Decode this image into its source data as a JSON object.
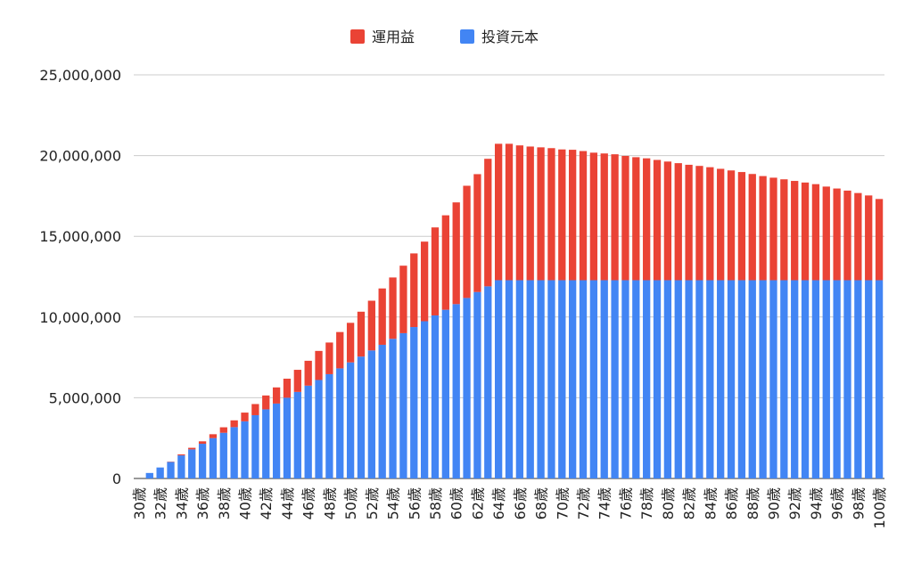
{
  "chart_data": {
    "type": "bar",
    "stacked": true,
    "legend_position": "top",
    "grid": true,
    "ylim": [
      0,
      25000000
    ],
    "y_ticks": [
      {
        "value": 0,
        "label": "0"
      },
      {
        "value": 5000000,
        "label": "5,000,000"
      },
      {
        "value": 10000000,
        "label": "10,000,000"
      },
      {
        "value": 15000000,
        "label": "15,000,000"
      },
      {
        "value": 20000000,
        "label": "20,000,000"
      },
      {
        "value": 25000000,
        "label": "25,000,000"
      }
    ],
    "categories": [
      "30歳",
      "31歳",
      "32歳",
      "33歳",
      "34歳",
      "35歳",
      "36歳",
      "37歳",
      "38歳",
      "39歳",
      "40歳",
      "41歳",
      "42歳",
      "43歳",
      "44歳",
      "45歳",
      "46歳",
      "47歳",
      "48歳",
      "49歳",
      "50歳",
      "51歳",
      "52歳",
      "53歳",
      "54歳",
      "55歳",
      "56歳",
      "57歳",
      "58歳",
      "59歳",
      "60歳",
      "61歳",
      "62歳",
      "63歳",
      "64歳",
      "65歳",
      "66歳",
      "67歳",
      "68歳",
      "69歳",
      "70歳",
      "71歳",
      "72歳",
      "73歳",
      "74歳",
      "75歳",
      "76歳",
      "77歳",
      "78歳",
      "79歳",
      "80歳",
      "81歳",
      "82歳",
      "83歳",
      "84歳",
      "85歳",
      "86歳",
      "87歳",
      "88歳",
      "89歳",
      "90歳",
      "91歳",
      "92歳",
      "93歳",
      "94歳",
      "95歳",
      "96歳",
      "97歳",
      "98歳",
      "99歳",
      "100歳"
    ],
    "x_tick_labels": [
      "30歳",
      "32歳",
      "34歳",
      "36歳",
      "38歳",
      "40歳",
      "42歳",
      "44歳",
      "46歳",
      "48歳",
      "50歳",
      "52歳",
      "54歳",
      "56歳",
      "58歳",
      "60歳",
      "62歳",
      "64歳",
      "66歳",
      "68歳",
      "70歳",
      "72歳",
      "74歳",
      "76歳",
      "78歳",
      "80歳",
      "82歳",
      "84歳",
      "86歳",
      "88歳",
      "90歳",
      "92歳",
      "94歳",
      "96歳",
      "98歳",
      "100歳"
    ],
    "series": [
      {
        "name": "投資元本",
        "color": "#4285f4",
        "values": [
          0,
          340000,
          680000,
          1020000,
          1430000,
          1800000,
          2150000,
          2500000,
          2830000,
          3180000,
          3540000,
          3920000,
          4280000,
          4640000,
          5000000,
          5360000,
          5750000,
          6100000,
          6460000,
          6820000,
          7190000,
          7550000,
          7930000,
          8280000,
          8650000,
          9000000,
          9380000,
          9740000,
          10100000,
          10450000,
          10800000,
          11180000,
          11550000,
          11900000,
          12280000,
          12280000,
          12280000,
          12280000,
          12280000,
          12280000,
          12280000,
          12280000,
          12280000,
          12280000,
          12280000,
          12280000,
          12280000,
          12280000,
          12280000,
          12280000,
          12280000,
          12280000,
          12280000,
          12280000,
          12280000,
          12280000,
          12280000,
          12280000,
          12280000,
          12280000,
          12280000,
          12280000,
          12280000,
          12280000,
          12280000,
          12280000,
          12280000,
          12280000,
          12280000,
          12280000,
          12280000
        ]
      },
      {
        "name": "運用益",
        "color": "#ea4335",
        "values": [
          0,
          0,
          0,
          20000,
          60000,
          100000,
          150000,
          240000,
          340000,
          420000,
          540000,
          690000,
          860000,
          1000000,
          1180000,
          1370000,
          1540000,
          1800000,
          1960000,
          2250000,
          2450000,
          2780000,
          3080000,
          3490000,
          3800000,
          4180000,
          4560000,
          4930000,
          5450000,
          5850000,
          6300000,
          6950000,
          7300000,
          7900000,
          8450000,
          8450000,
          8350000,
          8280000,
          8230000,
          8180000,
          8100000,
          8080000,
          8000000,
          7900000,
          7850000,
          7800000,
          7700000,
          7620000,
          7550000,
          7450000,
          7350000,
          7250000,
          7150000,
          7080000,
          7000000,
          6900000,
          6800000,
          6700000,
          6580000,
          6450000,
          6350000,
          6250000,
          6150000,
          6050000,
          5950000,
          5800000,
          5680000,
          5550000,
          5400000,
          5250000,
          5030000
        ]
      }
    ]
  }
}
